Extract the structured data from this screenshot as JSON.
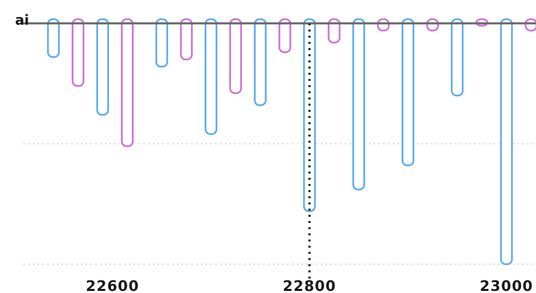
{
  "chart_data": {
    "type": "bar",
    "title": "",
    "ylabel": "ai",
    "xlabel": "",
    "x_ticks": [
      22600,
      22800,
      23000
    ],
    "x_tick_labels": [
      "22600",
      "22800",
      "23000"
    ],
    "xlim": [
      22515,
      23030
    ],
    "ylim": [
      -1.0,
      0.0
    ],
    "y_gridlines": [
      -0.5,
      -1.0
    ],
    "reference_line_x": 22800,
    "orientation": "downward",
    "grid": true,
    "legend": "none",
    "colors": {
      "series_a": "#5aaaf0",
      "series_b": "#cc70d6",
      "axis": "#666666",
      "grid": "#cccccc",
      "refline": "#333333"
    },
    "series": [
      {
        "x": [
          22540,
          22590,
          22650,
          22700,
          22750,
          22800,
          22850,
          22900,
          22950,
          23000
        ],
        "values": [
          -0.14,
          -0.38,
          -0.18,
          -0.46,
          -0.34,
          -0.78,
          -0.69,
          -0.59,
          -0.3,
          -1.0
        ]
      },
      {
        "x": [
          22565,
          22615,
          22675,
          22725,
          22775,
          22825,
          22875,
          22925,
          22975,
          23025
        ],
        "values": [
          -0.26,
          -0.51,
          -0.15,
          -0.29,
          -0.12,
          -0.08,
          -0.03,
          -0.03,
          -0.01,
          -0.03
        ]
      }
    ]
  }
}
